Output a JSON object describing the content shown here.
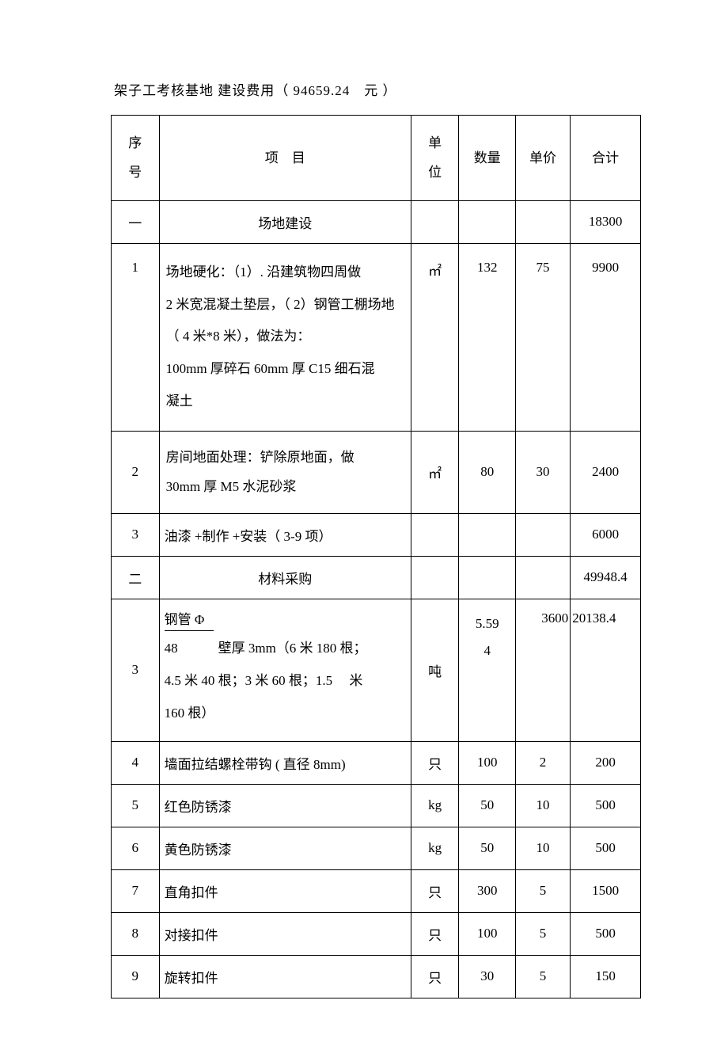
{
  "title": "架子工考核基地 建设费用（ 94659.24　元 ）",
  "headers": {
    "seq": "序\n号",
    "item": "项　目",
    "unit": "单\n位",
    "qty": "数量",
    "price": "单价",
    "total": "合计"
  },
  "rows": [
    {
      "seq": "一",
      "item": "场地建设",
      "unit": "",
      "qty": "",
      "price": "",
      "total": "18300",
      "section": true
    },
    {
      "seq": "1",
      "item": "场地硬化：（1）. 沿建筑物四周做\n2 米宽混凝土垫层，（ 2）钢管工棚场地（ 4 米*8 米），做法为：\n100mm 厚碎石 60mm 厚 C15 细石混\n凝土",
      "unit": "㎡",
      "qty": "132",
      "price": "75",
      "total": "9900",
      "tall": true
    },
    {
      "seq": "2",
      "item": "房间地面处理：铲除原地面，做\n30mm 厚 M5 水泥砂浆",
      "unit": "㎡",
      "qty": "80",
      "price": "30",
      "total": "2400",
      "medium": true
    },
    {
      "seq": "3",
      "item": "油漆 +制作 +安装（ 3-9 项）",
      "unit": "",
      "qty": "",
      "price": "",
      "total": "6000"
    },
    {
      "seq": "二",
      "item": "材料采购",
      "unit": "",
      "qty": "",
      "price": "",
      "total": "49948.4",
      "section": true
    },
    {
      "seq": "3",
      "item_special": true,
      "line1": "钢管 Φ",
      "line2": "48　　　壁厚 3mm（6 米 180 根；",
      "line3": "4.5 米 40 根；3 米 60 根；1.5 　米",
      "line4": "160 根）",
      "unit": "吨",
      "qty": "5.59\n4",
      "price": "3600",
      "total": "20138.4"
    },
    {
      "seq": "4",
      "item": "墙面拉结螺栓带钩 ( 直径 8mm)",
      "unit": "只",
      "qty": "100",
      "price": "2",
      "total": "200"
    },
    {
      "seq": "5",
      "item": "红色防锈漆",
      "unit": "kg",
      "qty": "50",
      "price": "10",
      "total": "500"
    },
    {
      "seq": "6",
      "item": "黄色防锈漆",
      "unit": "kg",
      "qty": "50",
      "price": "10",
      "total": "500"
    },
    {
      "seq": "7",
      "item": "直角扣件",
      "unit": "只",
      "qty": "300",
      "price": "5",
      "total": "1500"
    },
    {
      "seq": "8",
      "item": "对接扣件",
      "unit": "只",
      "qty": "100",
      "price": "5",
      "total": "500"
    },
    {
      "seq": "9",
      "item": "旋转扣件",
      "unit": "只",
      "qty": "30",
      "price": "5",
      "total": "150"
    }
  ]
}
